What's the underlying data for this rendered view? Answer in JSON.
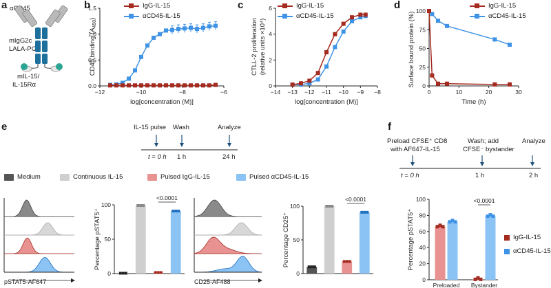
{
  "panels": {
    "a": {
      "label": "a",
      "antibody_label": "αCD45",
      "fc_label_1": "mIgG2c",
      "fc_label_2": "LALA-PG",
      "cytokine_label_1": "mIL-15/",
      "cytokine_label_2": "IL-15Rα"
    },
    "b": {
      "label": "b"
    },
    "c": {
      "label": "c"
    },
    "d": {
      "label": "d"
    },
    "e": {
      "label": "e",
      "timeline": {
        "events": [
          "IL-15 pulse",
          "Wash",
          "Analyze"
        ],
        "times": [
          "t = 0 h",
          "1 h",
          "24 h"
        ]
      },
      "legend": [
        "Medium",
        "Continuous IL-15",
        "Pulsed IgG-IL-15",
        "Pulsed αCD45-IL-15"
      ],
      "hist1_axis": "pSTAT5-AF647",
      "hist2_axis": "CD25-AF488"
    },
    "f": {
      "label": "f",
      "timeline": {
        "event1_line1": "Preload CFSE⁺ CD8",
        "event1_line2": "with AF647-IL-15",
        "event2_line1": "Wash; add",
        "event2_line2": "CFSE⁻ bystander",
        "event3": "Analyze",
        "times": [
          "t = 0 h",
          "1 h",
          "2 h"
        ]
      },
      "xcats_partial": [
        "Preloaded",
        "Bystander"
      ]
    }
  },
  "colors": {
    "igg": "#a52a1f",
    "acd45": "#3f93e6",
    "medium": "#555555",
    "continuous": "#cfcfcf",
    "pulsed_igg": "#e89292",
    "pulsed_acd45": "#8cc3f5",
    "antibody": "#b9b9b9",
    "fc": "#1d6f9c",
    "cytokine": "#2aa594"
  },
  "chart_data": [
    {
      "id": "b",
      "type": "line",
      "xlabel": "log[concentration (M)]",
      "ylabel": "CD45 binding (A450)",
      "xlim": [
        -12,
        -6
      ],
      "ylim": [
        0,
        1.5
      ],
      "xticks": [
        -12,
        -10,
        -8,
        -6
      ],
      "yticks": [
        0,
        0.5,
        1.0,
        1.5
      ],
      "series": [
        {
          "name": "IgG-IL-15",
          "x": [
            -11.5,
            -11.2,
            -10.9,
            -10.6,
            -10.3,
            -10.0,
            -9.7,
            -9.4,
            -9.1,
            -8.8,
            -8.5,
            -8.2,
            -7.9,
            -7.6,
            -7.3,
            -7.0,
            -6.7,
            -6.4
          ],
          "y": [
            0.01,
            0.01,
            0.01,
            0.01,
            0.01,
            0.01,
            0.01,
            0.01,
            0.01,
            0.01,
            0.01,
            0.01,
            0.01,
            0.01,
            0.01,
            0.01,
            0.01,
            0.02
          ]
        },
        {
          "name": "αCD45-IL-15",
          "x": [
            -11.5,
            -11.2,
            -10.9,
            -10.6,
            -10.3,
            -10.0,
            -9.7,
            -9.4,
            -9.1,
            -8.8,
            -8.5,
            -8.2,
            -7.9,
            -7.6,
            -7.3,
            -7.0,
            -6.7,
            -6.4
          ],
          "y": [
            0.02,
            0.03,
            0.06,
            0.14,
            0.3,
            0.56,
            0.78,
            0.93,
            1.0,
            1.07,
            1.08,
            1.1,
            1.11,
            1.12,
            1.1,
            1.12,
            1.15,
            1.16
          ]
        }
      ]
    },
    {
      "id": "c",
      "type": "line",
      "xlabel": "log[concentration (M)]",
      "ylabel": "CTLL-2 proliferation (relative units ×10⁴)",
      "xlim": [
        -14,
        -8
      ],
      "ylim": [
        0,
        6
      ],
      "xticks": [
        -14,
        -13,
        -12,
        -11,
        -10,
        -9,
        -8
      ],
      "yticks": [
        0,
        2,
        4,
        6
      ],
      "series": [
        {
          "name": "IgG-IL-15",
          "x": [
            -13.0,
            -12.5,
            -12.0,
            -11.5,
            -11.0,
            -10.5,
            -10.0,
            -9.5,
            -9.0,
            -8.7
          ],
          "y": [
            0.1,
            0.2,
            0.4,
            1.0,
            2.6,
            4.0,
            4.8,
            5.3,
            5.5,
            5.5
          ]
        },
        {
          "name": "αCD45-IL-15",
          "x": [
            -13.0,
            -12.5,
            -12.0,
            -11.5,
            -11.0,
            -10.5,
            -10.0,
            -9.5,
            -9.0,
            -8.7
          ],
          "y": [
            0.1,
            0.1,
            0.2,
            0.5,
            1.5,
            3.0,
            4.2,
            5.0,
            5.3,
            5.4
          ]
        }
      ]
    },
    {
      "id": "d",
      "type": "line",
      "xlabel": "Time (h)",
      "ylabel": "Surface bound protein (%)",
      "xlim": [
        0,
        30
      ],
      "ylim": [
        0,
        100
      ],
      "xticks": [
        0,
        10,
        20,
        30
      ],
      "yticks": [
        0,
        25,
        50,
        75,
        100
      ],
      "series": [
        {
          "name": "IgG-IL-15",
          "x": [
            0,
            1,
            3,
            6,
            22,
            27
          ],
          "y": [
            100,
            14,
            3,
            3,
            2,
            2
          ]
        },
        {
          "name": "αCD45-IL-15",
          "x": [
            0,
            1,
            3,
            6,
            22,
            27
          ],
          "y": [
            100,
            96,
            87,
            80,
            62,
            55
          ]
        }
      ]
    },
    {
      "id": "e_pstat5",
      "type": "bar",
      "ylabel": "Percentage pSTAT5⁺",
      "categories": [
        "Medium",
        "Continuous IL-15",
        "Pulsed IgG-IL-15",
        "Pulsed αCD45-IL-15"
      ],
      "values": [
        0.5,
        99,
        1.5,
        91
      ],
      "ylim": [
        0,
        100
      ],
      "yticks": [
        0,
        50,
        100
      ],
      "annotation": "<0.0001"
    },
    {
      "id": "e_cd25",
      "type": "bar",
      "ylabel": "Percentage CD25⁺",
      "categories": [
        "Medium",
        "Continuous IL-15",
        "Pulsed IgG-IL-15",
        "Pulsed αCD45-IL-15"
      ],
      "values": [
        10,
        100,
        18,
        91
      ],
      "ylim": [
        0,
        100
      ],
      "yticks": [
        0,
        50,
        100
      ],
      "annotation": "<0.0001"
    },
    {
      "id": "f_pstat5",
      "type": "bar",
      "ylabel": "Percentage pSTAT5⁺",
      "categories": [
        "Preloaded",
        "Bystander"
      ],
      "series": [
        {
          "name": "IgG-IL-15",
          "values": [
            66,
            0.5
          ]
        },
        {
          "name": "αCD45-IL-15",
          "values": [
            72,
            79
          ]
        }
      ],
      "ylim": [
        0,
        100
      ],
      "yticks": [
        0,
        20,
        40,
        60,
        80,
        100
      ],
      "annotation": "<0.0001"
    }
  ]
}
